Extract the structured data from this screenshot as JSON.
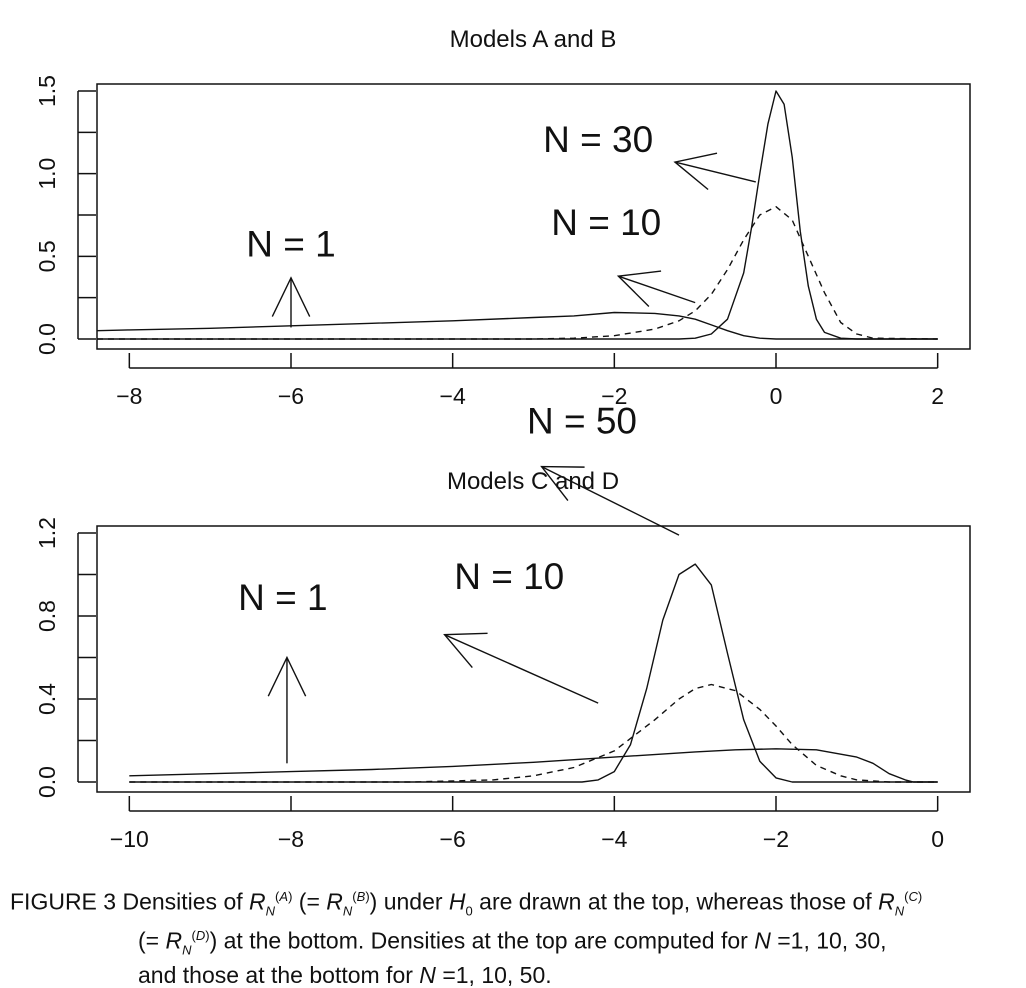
{
  "panels": [
    {
      "title": "Models A and B",
      "chart_data": {
        "type": "line",
        "title": "Models A and B",
        "xlabel": "",
        "ylabel": "",
        "xlim": [
          -8.4,
          2.4
        ],
        "ylim": [
          0,
          1.5
        ],
        "x_ticks": [
          -8,
          -6,
          -4,
          -2,
          0,
          2
        ],
        "x_tick_labels": [
          "−8",
          "−6",
          "−4",
          "−2",
          "0",
          "2"
        ],
        "y_ticks": [
          0,
          0.5,
          1.0,
          1.5
        ],
        "y_tick_labels": [
          "0.0",
          "0.5",
          "1.0",
          "1.5"
        ],
        "grid": false,
        "series": [
          {
            "name": "N = 1",
            "style": "solid",
            "x": [
              -8.4,
              -8,
              -7,
              -6,
              -5,
              -4,
              -3,
              -2.5,
              -2,
              -1.5,
              -1.2,
              -1,
              -0.8,
              -0.6,
              -0.4,
              -0.2,
              0,
              0.5,
              1,
              2
            ],
            "y": [
              0.05,
              0.055,
              0.065,
              0.08,
              0.095,
              0.11,
              0.13,
              0.14,
              0.16,
              0.155,
              0.14,
              0.12,
              0.085,
              0.05,
              0.02,
              0.005,
              0.0,
              0.0,
              0.0,
              0.0
            ]
          },
          {
            "name": "N = 10",
            "style": "dashed",
            "x": [
              -8.4,
              -3,
              -2.5,
              -2,
              -1.5,
              -1.2,
              -1,
              -0.8,
              -0.6,
              -0.4,
              -0.2,
              0,
              0.2,
              0.4,
              0.6,
              0.8,
              1,
              1.2,
              2
            ],
            "y": [
              0,
              0,
              0.005,
              0.02,
              0.06,
              0.11,
              0.17,
              0.27,
              0.42,
              0.6,
              0.75,
              0.8,
              0.72,
              0.5,
              0.28,
              0.1,
              0.03,
              0.005,
              0
            ]
          },
          {
            "name": "N = 30",
            "style": "solid",
            "x": [
              -8.4,
              -1.2,
              -1,
              -0.8,
              -0.6,
              -0.4,
              -0.3,
              -0.2,
              -0.1,
              0,
              0.1,
              0.2,
              0.3,
              0.4,
              0.5,
              0.6,
              0.8,
              1,
              2
            ],
            "y": [
              0,
              0,
              0.005,
              0.03,
              0.12,
              0.4,
              0.68,
              1.0,
              1.3,
              1.5,
              1.42,
              1.1,
              0.65,
              0.32,
              0.12,
              0.04,
              0.005,
              0,
              0
            ]
          }
        ],
        "annotations": [
          {
            "text": "N = 1",
            "label_at": [
              -6,
              0.5
            ],
            "arrow_tip": [
              -6,
              0.37
            ],
            "arrow_tail": [
              -6,
              0.07
            ]
          },
          {
            "text": "N = 10",
            "label_at": [
              -2.1,
              0.63
            ],
            "arrow_tip": [
              -1.95,
              0.38
            ],
            "arrow_tail": [
              -1.0,
              0.22
            ]
          },
          {
            "text": "N = 30",
            "label_at": [
              -2.2,
              1.13
            ],
            "arrow_tip": [
              -1.25,
              1.07
            ],
            "arrow_tail": [
              -0.25,
              0.95
            ]
          }
        ]
      }
    },
    {
      "title": "Models C and D",
      "chart_data": {
        "type": "line",
        "title": "Models C and D",
        "xlabel": "",
        "ylabel": "",
        "xlim": [
          -10.4,
          0.4
        ],
        "ylim": [
          0,
          1.2
        ],
        "x_ticks": [
          -10,
          -8,
          -6,
          -4,
          -2,
          0
        ],
        "x_tick_labels": [
          "−10",
          "−8",
          "−6",
          "−4",
          "−2",
          "0"
        ],
        "y_ticks": [
          0,
          0.4,
          0.8,
          1.2
        ],
        "y_tick_labels": [
          "0.0",
          "0.4",
          "0.8",
          "1.2"
        ],
        "grid": false,
        "series": [
          {
            "name": "N = 1",
            "style": "solid",
            "x": [
              -10,
              -9,
              -8,
              -7,
              -6,
              -5,
              -4,
              -3,
              -2.5,
              -2,
              -1.5,
              -1,
              -0.8,
              -0.6,
              -0.4,
              -0.3,
              0
            ],
            "y": [
              0.03,
              0.04,
              0.05,
              0.06,
              0.075,
              0.095,
              0.12,
              0.145,
              0.155,
              0.16,
              0.155,
              0.12,
              0.09,
              0.04,
              0.01,
              0.0,
              0.0
            ]
          },
          {
            "name": "N = 10",
            "style": "dashed",
            "x": [
              -10,
              -6.5,
              -5.5,
              -5,
              -4.5,
              -4,
              -3.5,
              -3.2,
              -3,
              -2.8,
              -2.5,
              -2.2,
              -2,
              -1.8,
              -1.5,
              -1.2,
              -1,
              -0.6,
              0
            ],
            "y": [
              0,
              0,
              0.01,
              0.03,
              0.07,
              0.15,
              0.3,
              0.4,
              0.45,
              0.47,
              0.44,
              0.35,
              0.27,
              0.18,
              0.08,
              0.03,
              0.01,
              0,
              0
            ]
          },
          {
            "name": "N = 50",
            "style": "solid",
            "x": [
              -10,
              -4.4,
              -4.2,
              -4,
              -3.8,
              -3.6,
              -3.4,
              -3.2,
              -3,
              -2.8,
              -2.6,
              -2.4,
              -2.2,
              -2,
              -1.8,
              0
            ],
            "y": [
              0,
              0,
              0.01,
              0.05,
              0.18,
              0.45,
              0.78,
              1.0,
              1.05,
              0.95,
              0.62,
              0.3,
              0.1,
              0.02,
              0.0,
              0.0
            ]
          }
        ],
        "annotations": [
          {
            "text": "N = 1",
            "label_at": [
              -8.1,
              0.83
            ],
            "arrow_tip": [
              -8.05,
              0.6
            ],
            "arrow_tail": [
              -8.05,
              0.09
            ]
          },
          {
            "text": "N = 10",
            "label_at": [
              -5.3,
              0.93
            ],
            "arrow_tip": [
              -6.1,
              0.71
            ],
            "arrow_tail": [
              -4.2,
              0.38
            ]
          },
          {
            "text": "N = 50",
            "label_at": [
              -4.4,
              1.68
            ],
            "arrow_tip": [
              -4.9,
              1.52
            ],
            "arrow_tail": [
              -3.2,
              1.19
            ]
          }
        ]
      }
    }
  ],
  "caption": {
    "line1_prefix": "FIGURE 3 Densities of ",
    "r_a": "A",
    "open_eq": " (= ",
    "r_b": "B",
    "close_under": ") under ",
    "h0_sub": "0",
    "line1_mid": " are drawn at the top, whereas those of ",
    "r_c": "C",
    "r_d": "D",
    "line2_rest": ") at the bottom. Densities at the top are computed for ",
    "line2_end": "=1, 10, 30,",
    "line3_start": "and those at the bottom for ",
    "line3_end": "=1, 10, 50."
  }
}
